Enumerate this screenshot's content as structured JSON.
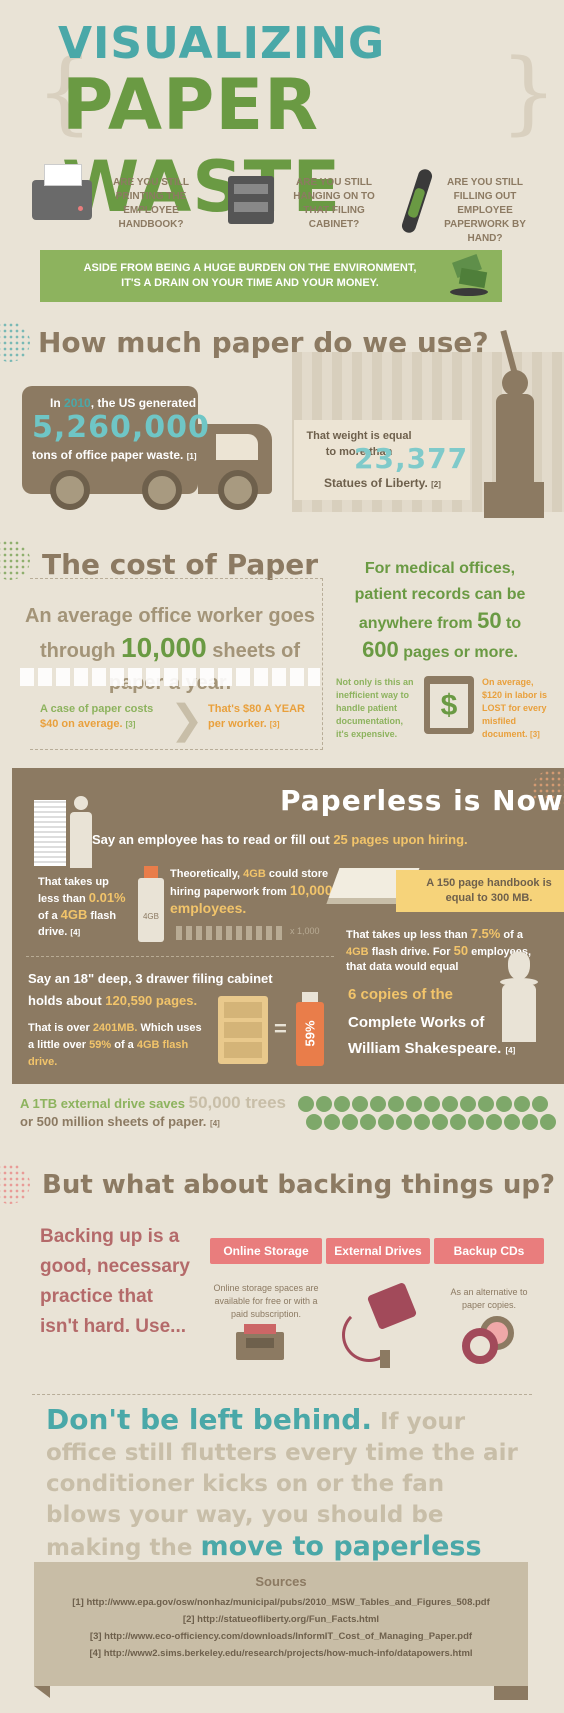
{
  "header": {
    "line1": "VISUALIZING",
    "line2": "PAPER WASTE",
    "q1": "ARE YOU STILL PRINTING THE EMPLOYEE HANDBOOK?",
    "q2": "ARE YOU STILL HANGING ON TO THAT FILING CABINET?",
    "q3": "ARE YOU STILL FILLING OUT EMPLOYEE PAPERWORK BY HAND?",
    "banner": "ASIDE FROM BEING A HUGE BURDEN ON THE ENVIRONMENT, IT'S A DRAIN ON YOUR TIME AND YOUR MONEY."
  },
  "usage": {
    "title": "How much paper do we use?",
    "truck_year_pre": "In",
    "truck_year": "2010",
    "truck_year_post": ", the US generated",
    "truck_amount": "5,260,000",
    "truck_unit": "tons of office paper waste.",
    "truck_ref": "[1]",
    "weight_text": "That weight is equal to more than",
    "weight_amount": "23,377",
    "weight_unit": "Statues of Liberty.",
    "weight_ref": "[2]"
  },
  "cost": {
    "title": "The cost of Paper",
    "worker_pre": "An average office worker goes through",
    "worker_amount": "10,000",
    "worker_post": "sheets of paper a year.",
    "case_text": "A case of paper costs",
    "case_price": "$40 on average.",
    "case_ref": "[3]",
    "year_text": "That's $80 A YEAR per worker.",
    "year_ref": "[3]",
    "medical_1": "For medical offices, patient records can be anywhere from",
    "medical_50": "50",
    "medical_to": "to",
    "medical_600": "600",
    "medical_2": "pages or more.",
    "inefficient": "Not only is this an inefficient way to handle patient documentation, it's expensive.",
    "labor": "On average, $120 in labor is LOST for every misfiled document.",
    "labor_ref": "[3]"
  },
  "paperless": {
    "title": "Paperless is Now",
    "employee": "Say an employee has to read or fill out",
    "employee_pages": "25 pages upon hiring.",
    "takes_up": "That takes up less than",
    "takes_up_pct": "0.01%",
    "takes_up_post": "of a",
    "takes_up_gb": "4GB",
    "takes_up_end": "flash drive.",
    "takes_up_ref": "[4]",
    "flash_label": "4GB",
    "theory_1": "Theoretically,",
    "theory_gb": "4GB",
    "theory_2": "could store hiring paperwork from",
    "theory_amount": "10,000 employees.",
    "people_count": "x 1,000",
    "handbook_1": "A",
    "handbook_pages": "150 page",
    "handbook_2": "handbook is equal to",
    "handbook_mb": "300 MB.",
    "handbook_pct_pre": "That takes up less than",
    "handbook_pct": "7.5%",
    "handbook_pct_post": "of a",
    "handbook_gb": "4GB",
    "handbook_pct_end": "flash drive. For",
    "handbook_50": "50",
    "handbook_emp": "employees, that data would equal",
    "copies": "6 copies of the",
    "works": "Complete Works of William Shakespeare.",
    "works_ref": "[4]",
    "cabinet_1": "Say an 18\" deep, 3 drawer filing cabinet holds about",
    "cabinet_pages": "120,590 pages.",
    "cabinet_over": "That is over",
    "cabinet_mb": "2401MB.",
    "cabinet_which": "Which uses a little over",
    "cabinet_pct": "59%",
    "cabinet_of": "of a",
    "cabinet_gb": "4GB flash drive.",
    "cabinet_drive_label": "59%",
    "tb_pre": "A 1TB external drive saves",
    "tb_trees": "50,000 trees",
    "tb_post": "or 500 million sheets of paper.",
    "tb_ref": "[4]"
  },
  "backup": {
    "title": "But what about backing things up?",
    "intro": "Backing up is a good, necessary practice that isn't hard. Use...",
    "opt1": "Online Storage",
    "opt1_desc": "Online storage spaces are available for free or with a paid subscription.",
    "opt2": "External Drives",
    "opt3": "Backup CDs",
    "opt3_desc": "As an alternative to paper copies."
  },
  "closing": {
    "lead": "Don't be left behind.",
    "body": "If your office still flutters every time the air conditioner kicks on or the fan blows your way, you should be making the",
    "end": "move to paperless today."
  },
  "sources": {
    "title": "Sources",
    "items": [
      "[1] http://www.epa.gov/osw/nonhaz/municipal/pubs/2010_MSW_Tables_and_Figures_508.pdf",
      "[2] http://statueofliberty.org/Fun_Facts.html",
      "[3] http://www.eco-officiency.com/downloads/InformIT_Cost_of_Managing_Paper.pdf",
      "[4] http://www2.sims.berkeley.edu/research/projects/how-much-info/datapowers.html"
    ]
  },
  "colors": {
    "teal": "#4aa8a8",
    "green": "#6a9a43",
    "brown": "#8c7a62",
    "pink": "#e97d7d",
    "background": "#e9e3d6"
  }
}
